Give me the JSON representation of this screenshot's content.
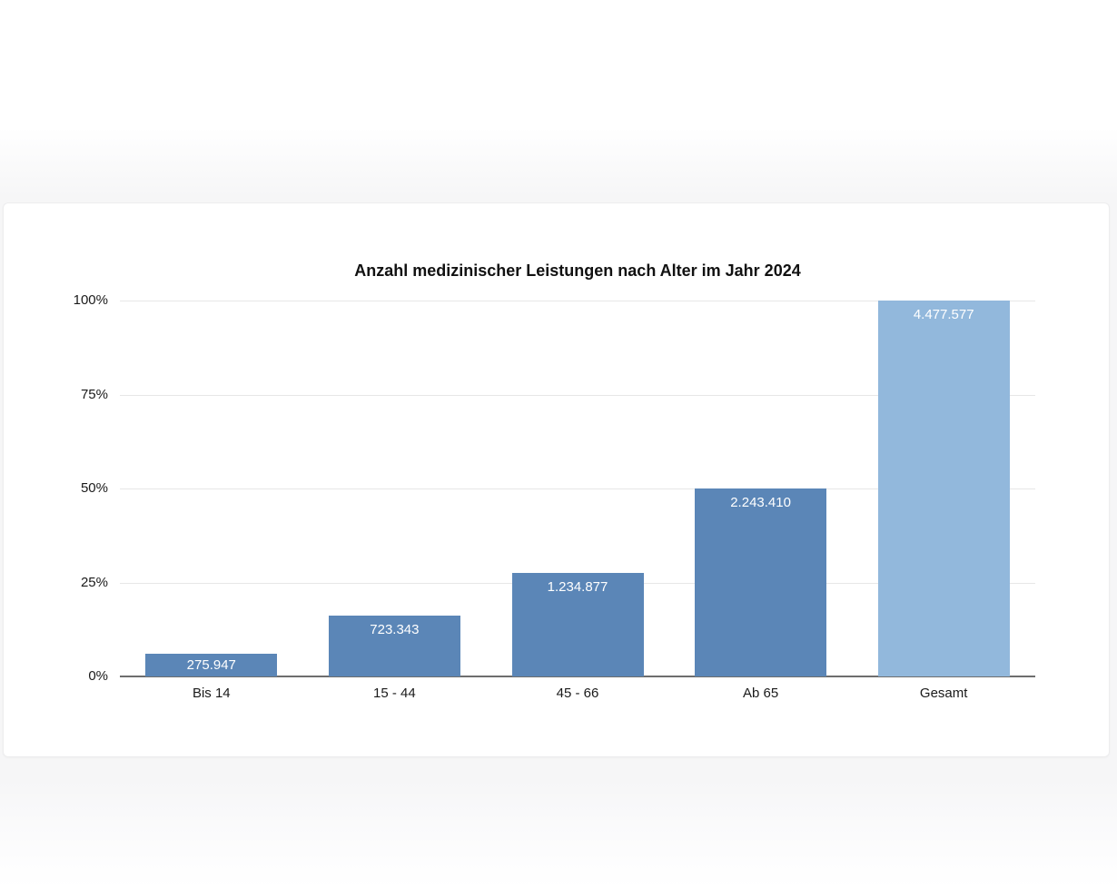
{
  "page": {
    "background_band_color": "#f6f6f7",
    "card_background": "#ffffff",
    "card_border_color": "#ededee"
  },
  "chart_data": {
    "type": "bar",
    "title": "Anzahl medizinischer Leistungen nach Alter im Jahr 2024",
    "categories": [
      "Bis 14",
      "15 - 44",
      "45 - 66",
      "Ab 65",
      "Gesamt"
    ],
    "values": [
      275947,
      723343,
      1234877,
      2243410,
      4477577
    ],
    "value_labels": [
      "275.947",
      "723.343",
      "1.234.877",
      "2.243.410",
      "4.477.577"
    ],
    "percent_of_total": [
      6.2,
      16.2,
      27.6,
      50.1,
      100
    ],
    "series": [
      {
        "name": "Anzahl medizinischer Leistungen",
        "values": [
          275947,
          723343,
          1234877,
          2243410,
          4477577
        ]
      }
    ],
    "xlabel": "",
    "ylabel": "",
    "y_ticks": [
      "0%",
      "25%",
      "50%",
      "75%",
      "100%"
    ],
    "ylim": [
      0,
      100
    ],
    "y_unit": "percent of Gesamt",
    "grid": true,
    "legend_position": "none",
    "bar_colors": [
      "#5b86b7",
      "#5b86b7",
      "#5b86b7",
      "#5b86b7",
      "#92b8dc"
    ],
    "colors": {
      "bar_primary": "#5b86b7",
      "bar_total": "#92b8dc",
      "gridline": "#e7e7e7",
      "axis_line": "#6e6e6e",
      "value_label_text": "#ffffff",
      "axis_text": "#1a1a1a",
      "title_text": "#111111"
    }
  }
}
